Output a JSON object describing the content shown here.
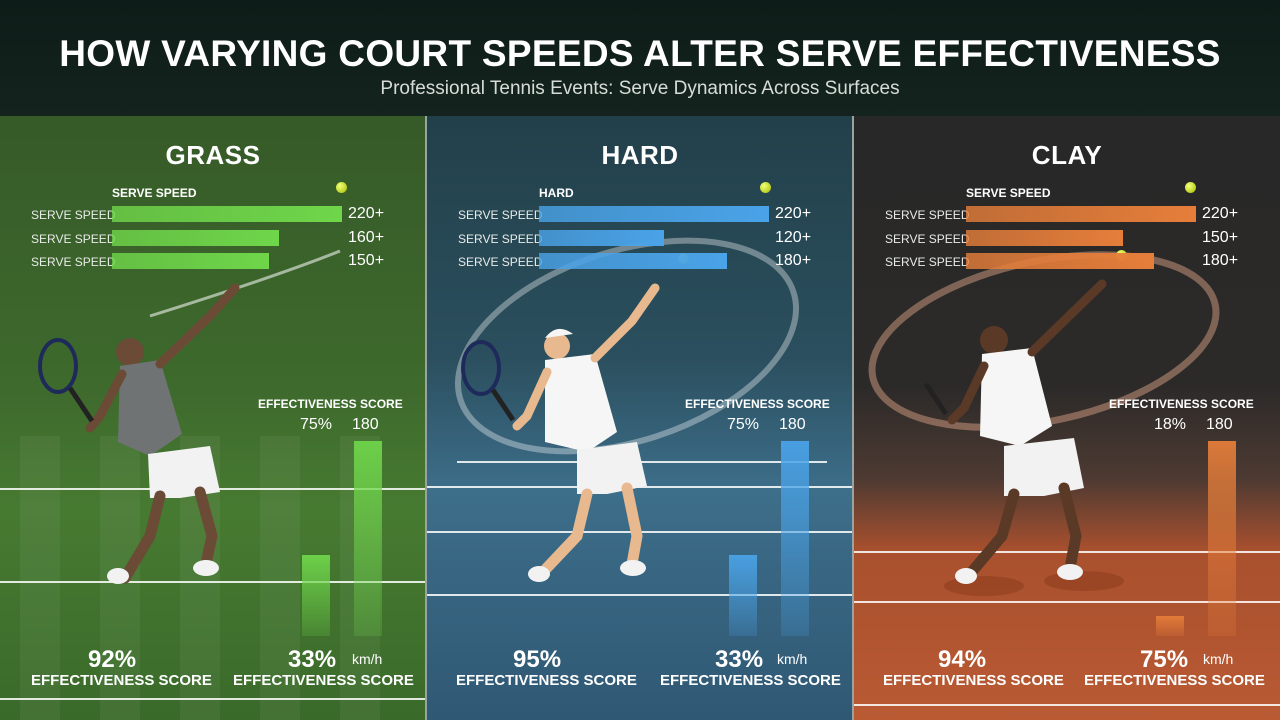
{
  "header": {
    "title": "HOW VARYING COURT SPEEDS ALTER SERVE EFFECTIVENESS",
    "subtitle": "Professional Tennis Events: Serve Dynamics Across Surfaces"
  },
  "colors": {
    "grass": "#6fd64a",
    "hard": "#4aa3e8",
    "clay": "#e67e3a"
  },
  "icons": [
    "tennis-ball-icon",
    "tennis-player-figure",
    "tennis-racket-icon"
  ],
  "chart_data": [
    {
      "type": "bar",
      "title": "GRASS",
      "heading": "SERVE SPEED",
      "bars": [
        {
          "label": "SERVE SPEED",
          "value": 220,
          "display": "220+"
        },
        {
          "label": "SERVE SPEED",
          "value": 160,
          "display": "160+"
        },
        {
          "label": "SERVE SPEED",
          "value": 150,
          "display": "150+"
        }
      ],
      "effectiveness_title": "EFFECTIVENESS SCORE",
      "columns": [
        {
          "value": 75,
          "display": "75%"
        },
        {
          "value": 180,
          "display": "180"
        }
      ],
      "bottom_left": {
        "value": "92%",
        "caption": "EFFECTIVENESS SCORE"
      },
      "bottom_right": {
        "value": "33%",
        "unit": "km/h",
        "caption": "EFFECTIVENESS SCORE"
      }
    },
    {
      "type": "bar",
      "title": "HARD",
      "heading": "HARD",
      "bars": [
        {
          "label": "SERVE SPEED",
          "value": 220,
          "display": "220+"
        },
        {
          "label": "SERVE SPEED",
          "value": 120,
          "display": "120+"
        },
        {
          "label": "SERVE SPEED",
          "value": 180,
          "display": "180+"
        }
      ],
      "effectiveness_title": "EFFECTIVENESS SCORE",
      "columns": [
        {
          "value": 75,
          "display": "75%"
        },
        {
          "value": 180,
          "display": "180"
        }
      ],
      "bottom_left": {
        "value": "95%",
        "caption": "EFFECTIVENESS SCORE"
      },
      "bottom_right": {
        "value": "33%",
        "unit": "km/h",
        "caption": "EFFECTIVENESS SCORE"
      }
    },
    {
      "type": "bar",
      "title": "CLAY",
      "heading": "SERVE SPEED",
      "bars": [
        {
          "label": "SERVE SPEED",
          "value": 220,
          "display": "220+"
        },
        {
          "label": "SERVE SPEED",
          "value": 150,
          "display": "150+"
        },
        {
          "label": "SERVE SPEED",
          "value": 180,
          "display": "180+"
        }
      ],
      "effectiveness_title": "EFFECTIVENESS SCORE",
      "columns": [
        {
          "value": 18,
          "display": "18%"
        },
        {
          "value": 180,
          "display": "180"
        }
      ],
      "bottom_left": {
        "value": "94%",
        "caption": "EFFECTIVENESS SCORE"
      },
      "bottom_right": {
        "value": "75%",
        "unit": "km/h",
        "caption": "EFFECTIVENESS SCORE"
      }
    }
  ]
}
